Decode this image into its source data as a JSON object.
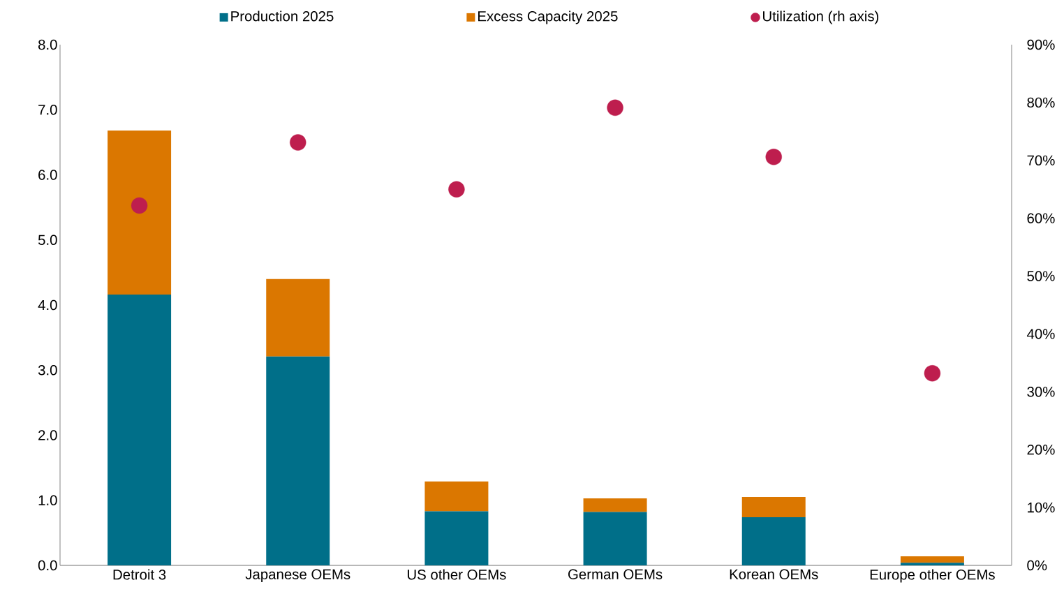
{
  "chart_data": {
    "type": "bar",
    "stacked": true,
    "legend": "top",
    "marker": "circle",
    "categories": [
      "Detroit 3",
      "Japanese OEMs",
      "US other OEMs",
      "German OEMs",
      "Korean OEMs",
      "Europe other OEMs"
    ],
    "series": [
      {
        "name": "Production 2025",
        "color": "#006f89",
        "values": [
          4.16,
          3.21,
          0.83,
          0.82,
          0.74,
          0.04
        ]
      },
      {
        "name": "Excess Capacity 2025",
        "color": "#db7700",
        "values": [
          2.52,
          1.19,
          0.46,
          0.21,
          0.31,
          0.1
        ]
      },
      {
        "name": "Utilization (rh axis)",
        "type": "scatter",
        "axis": "y2",
        "color": "#be1e4e",
        "x": [
          "Detroit 3",
          "Japanese OEMs",
          "US other OEMs",
          "German OEMs",
          "Korean OEMs",
          "Europe other OEMs"
        ],
        "values": [
          62.2,
          73.1,
          65.0,
          79.1,
          70.6,
          33.2
        ]
      }
    ],
    "ylim": [
      0,
      8
    ],
    "yticks": [
      {
        "value": 0,
        "label": "0.0"
      },
      {
        "value": 1,
        "label": "1.0"
      },
      {
        "value": 2,
        "label": "2.0"
      },
      {
        "value": 3,
        "label": "3.0"
      },
      {
        "value": 4,
        "label": "4.0"
      },
      {
        "value": 5,
        "label": "5.0"
      },
      {
        "value": 6,
        "label": "6.0"
      },
      {
        "value": 7,
        "label": "7.0"
      },
      {
        "value": 8,
        "label": "8.0"
      }
    ],
    "y2lim": [
      0,
      90
    ],
    "y2ticks": [
      {
        "value": 0,
        "label": "0%"
      },
      {
        "value": 10,
        "label": "10%"
      },
      {
        "value": 20,
        "label": "20%"
      },
      {
        "value": 30,
        "label": "30%"
      },
      {
        "value": 40,
        "label": "40%"
      },
      {
        "value": 50,
        "label": "50%"
      },
      {
        "value": 60,
        "label": "60%"
      },
      {
        "value": 70,
        "label": "70%"
      },
      {
        "value": 80,
        "label": "80%"
      },
      {
        "value": 90,
        "label": "90%"
      }
    ]
  }
}
